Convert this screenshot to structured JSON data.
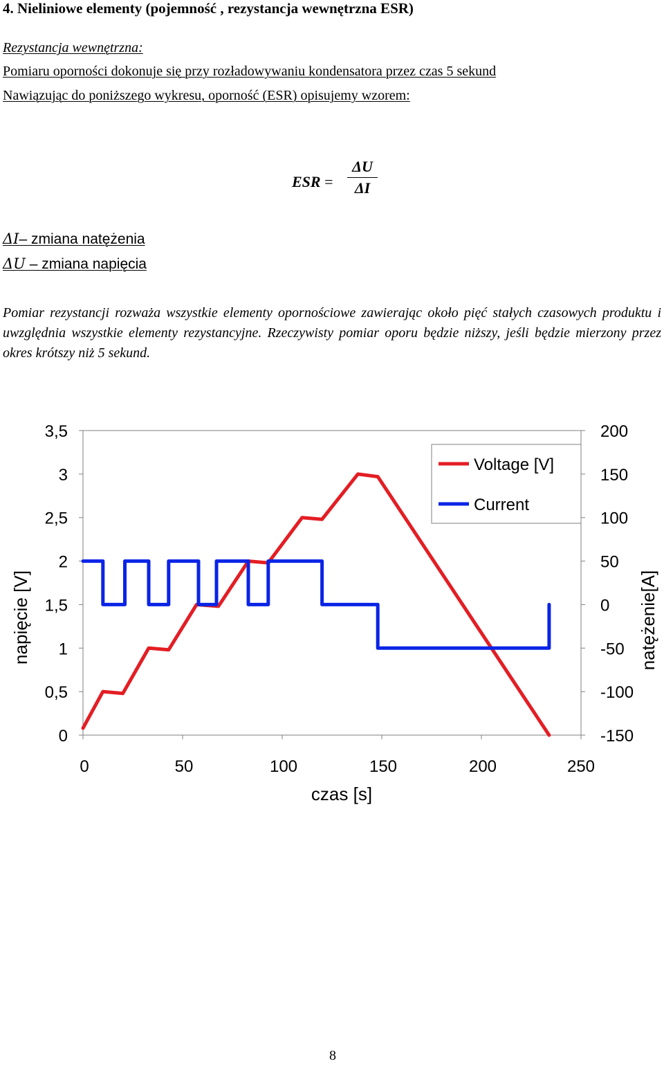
{
  "heading": "4. Nieliniowe elementy (pojemność , rezystancja wewnętrzna ESR)",
  "subheading": "Rezystancja wewnętrzna:",
  "line1": "Pomiaru oporności dokonuje się przy rozładowywaniu kondensatora przez czas 5 sekund",
  "line2": "Nawiązując do poniższego wykresu, oporność (ESR) opisujemy wzorem:",
  "formula": {
    "lhs": "ESR",
    "equals": "=",
    "numerator": "ΔU",
    "denominator": "ΔI"
  },
  "definitions": [
    {
      "symbol": "ΔI",
      "text": "– zmiana natężenia"
    },
    {
      "symbol": "ΔU",
      "text": " – zmiana napięcia"
    }
  ],
  "paragraph": "Pomiar rezystancji rozważa wszystkie elementy opornościowe zawierając około pięć stałych czasowych produktu i uwzględnia wszystkie elementy rezystancyjne. Rzeczywisty pomiar oporu będzie niższy, jeśli będzie mierzony przez okres krótszy niż 5 sekund.",
  "chart_data": {
    "type": "line",
    "xlabel": "czas [s]",
    "ylabel_left": "napięcie [V]",
    "ylabel_right": "natężenie[A]",
    "xlim": [
      0,
      250
    ],
    "ylim_left": [
      0,
      3.5
    ],
    "ylim_right": [
      -150,
      200
    ],
    "x_ticks": [
      "0",
      "50",
      "100",
      "150",
      "200",
      "250"
    ],
    "y_left_ticks": [
      "0",
      "0,5",
      "1",
      "1,5",
      "2",
      "2,5",
      "3",
      "3,5"
    ],
    "y_right_ticks": [
      "-150",
      "-100",
      "-50",
      "0",
      "50",
      "100",
      "150",
      "200"
    ],
    "grid": false,
    "legend_position": "top-right",
    "series": [
      {
        "name": "Voltage [V]",
        "axis": "left",
        "color": "#e31e24",
        "x": [
          0,
          10,
          20,
          33,
          43,
          57,
          68,
          83,
          93,
          110,
          120,
          138,
          148,
          234
        ],
        "y": [
          0.08,
          0.5,
          0.48,
          1.0,
          0.98,
          1.5,
          1.48,
          2.0,
          1.98,
          2.5,
          2.48,
          3.0,
          2.97,
          0.0
        ]
      },
      {
        "name": "Current",
        "axis": "right",
        "color": "#0a24e6",
        "x": [
          10,
          10,
          21,
          21,
          33,
          33,
          43,
          43,
          58,
          58,
          67,
          67,
          83,
          83,
          93,
          93,
          120,
          120,
          148,
          148,
          234,
          234
        ],
        "y": [
          50,
          0,
          0,
          50,
          50,
          0,
          0,
          50,
          50,
          0,
          0,
          50,
          50,
          0,
          0,
          50,
          50,
          0,
          0,
          -50,
          -50,
          0
        ],
        "start": [
          0,
          50
        ]
      }
    ]
  },
  "page_number": "8"
}
